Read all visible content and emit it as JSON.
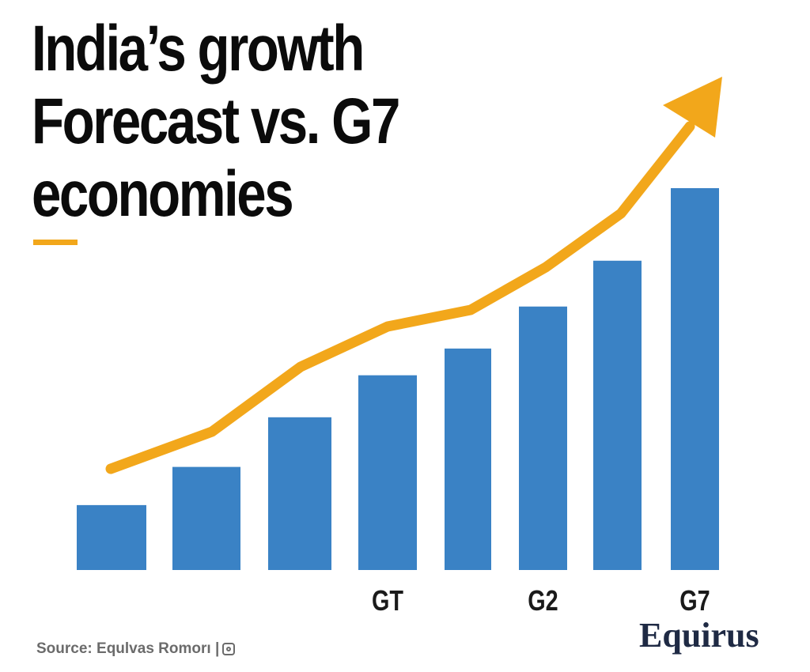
{
  "title_lines": [
    "India’s growth",
    "Forecast vs. G7",
    "economies"
  ],
  "source_text": "Source: Equlvas Romorı |",
  "logo_text": "Equirus",
  "colors": {
    "bar": "#3a82c5",
    "trend": "#f2a71b",
    "accent": "#f2a71b",
    "logo": "#1f2a44"
  },
  "chart_data": {
    "type": "bar",
    "categories": [
      "",
      "",
      "",
      "GT",
      "",
      "G2",
      "",
      "G7"
    ],
    "values": [
      17,
      27,
      40,
      51,
      58,
      69,
      81,
      100
    ],
    "trend_line": [
      26,
      35,
      52,
      64,
      68,
      79,
      93,
      128
    ],
    "ylim": [
      0,
      130
    ],
    "title": "India’s growth Forecast vs. G7 economies",
    "xlabel": "",
    "ylabel": "",
    "grid": false,
    "legend": "none"
  }
}
